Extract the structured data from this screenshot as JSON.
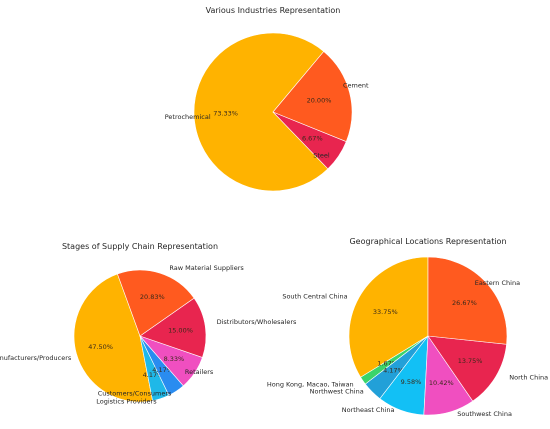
{
  "chart_data": [
    {
      "type": "pie",
      "title": "Various Industries Representation",
      "slices": [
        {
          "label": "Petrochemical",
          "value": 73.33,
          "pct_label": "73.33%",
          "color": "#ffb300"
        },
        {
          "label": "Steel",
          "value": 6.67,
          "pct_label": "6.67%",
          "color": "#e8254f"
        },
        {
          "label": "Cement",
          "value": 20.0,
          "pct_label": "20.00%",
          "color": "#ff5a1f"
        }
      ]
    },
    {
      "type": "pie",
      "title": "Stages of Supply Chain Representation",
      "slices": [
        {
          "label": "Manufacturers/Producers",
          "value": 47.5,
          "pct_label": "47.50%",
          "color": "#ffb300"
        },
        {
          "label": "Logistics Providers",
          "value": 4.17,
          "pct_label": "4.17%",
          "color": "#1fb8e8"
        },
        {
          "label": "Customers/Consumers",
          "value": 4.17,
          "pct_label": "4.17%",
          "color": "#2a8cf0"
        },
        {
          "label": "Retailers",
          "value": 8.33,
          "pct_label": "8.33%",
          "color": "#f04fc0"
        },
        {
          "label": "Distributors/Wholesalers",
          "value": 15.0,
          "pct_label": "15.00%",
          "color": "#e8254f"
        },
        {
          "label": "Raw Material Suppliers",
          "value": 20.83,
          "pct_label": "20.83%",
          "color": "#ff5a1f"
        }
      ]
    },
    {
      "type": "pie",
      "title": "Geographical Locations Representation",
      "slices": [
        {
          "label": "South Central China",
          "value": 33.75,
          "pct_label": "33.75%",
          "color": "#ffb300"
        },
        {
          "label": "Hong Kong, Macao, Taiwan",
          "value": 1.67,
          "pct_label": "1.67%",
          "color": "#3ad46a"
        },
        {
          "label": "Northwest China",
          "value": 4.17,
          "pct_label": "4.17%",
          "color": "#22a0d8"
        },
        {
          "label": "Northeast China",
          "value": 9.58,
          "pct_label": "9.58%",
          "color": "#12c0f5"
        },
        {
          "label": "Southwest China",
          "value": 10.42,
          "pct_label": "10.42%",
          "color": "#f04fc0"
        },
        {
          "label": "North China",
          "value": 13.75,
          "pct_label": "13.75%",
          "color": "#e8254f"
        },
        {
          "label": "Eastern China",
          "value": 26.67,
          "pct_label": "26.67%",
          "color": "#ff5a1f"
        }
      ]
    }
  ]
}
